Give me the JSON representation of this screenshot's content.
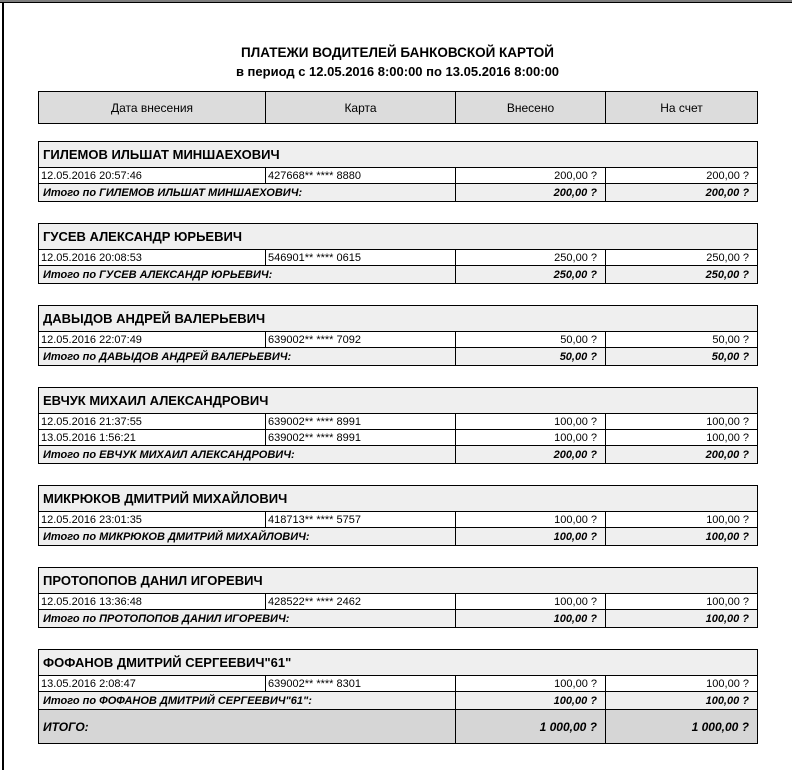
{
  "page": {
    "title_line1": "ПЛАТЕЖИ ВОДИТЕЛЕЙ БАНКОВСКОЙ КАРТОЙ",
    "title_line2": "в период с 12.05.2016 8:00:00 по 13.05.2016 8:00:00"
  },
  "colors": {
    "header_bg": "#dcdcdc",
    "group_bg": "#efefef",
    "grand_total_bg": "#d6d6d6",
    "border": "#000000"
  },
  "table": {
    "columns": [
      "Дата внесения",
      "Карта",
      "Внесено",
      "На счет"
    ],
    "groups": [
      {
        "driver": "ГИЛЕМОВ ИЛЬШАТ МИНШАЕХОВИЧ",
        "rows": [
          {
            "date": "12.05.2016 20:57:46",
            "card": "427668** **** 8880",
            "deposited": "200,00 ?",
            "to_account": "200,00 ?"
          }
        ],
        "subtotal_label": "Итого по ГИЛЕМОВ ИЛЬШАТ МИНШАЕХОВИЧ:",
        "subtotal_deposited": "200,00 ?",
        "subtotal_to_account": "200,00 ?"
      },
      {
        "driver": "ГУСЕВ АЛЕКСАНДР ЮРЬЕВИЧ",
        "rows": [
          {
            "date": "12.05.2016 20:08:53",
            "card": "546901** **** 0615",
            "deposited": "250,00 ?",
            "to_account": "250,00 ?"
          }
        ],
        "subtotal_label": "Итого по ГУСЕВ АЛЕКСАНДР ЮРЬЕВИЧ:",
        "subtotal_deposited": "250,00 ?",
        "subtotal_to_account": "250,00 ?"
      },
      {
        "driver": "ДАВЫДОВ АНДРЕЙ ВАЛЕРЬЕВИЧ",
        "rows": [
          {
            "date": "12.05.2016 22:07:49",
            "card": "639002** **** 7092",
            "deposited": "50,00 ?",
            "to_account": "50,00 ?"
          }
        ],
        "subtotal_label": "Итого по ДАВЫДОВ АНДРЕЙ ВАЛЕРЬЕВИЧ:",
        "subtotal_deposited": "50,00 ?",
        "subtotal_to_account": "50,00 ?"
      },
      {
        "driver": "ЕВЧУК МИХАИЛ АЛЕКСАНДРОВИЧ",
        "rows": [
          {
            "date": "12.05.2016 21:37:55",
            "card": "639002** **** 8991",
            "deposited": "100,00 ?",
            "to_account": "100,00 ?"
          },
          {
            "date": "13.05.2016 1:56:21",
            "card": "639002** **** 8991",
            "deposited": "100,00 ?",
            "to_account": "100,00 ?"
          }
        ],
        "subtotal_label": "Итого по ЕВЧУК МИХАИЛ АЛЕКСАНДРОВИЧ:",
        "subtotal_deposited": "200,00 ?",
        "subtotal_to_account": "200,00 ?"
      },
      {
        "driver": "МИКРЮКОВ ДМИТРИЙ МИХАЙЛОВИЧ",
        "rows": [
          {
            "date": "12.05.2016 23:01:35",
            "card": "418713** **** 5757",
            "deposited": "100,00 ?",
            "to_account": "100,00 ?"
          }
        ],
        "subtotal_label": "Итого по МИКРЮКОВ ДМИТРИЙ МИХАЙЛОВИЧ:",
        "subtotal_deposited": "100,00 ?",
        "subtotal_to_account": "100,00 ?"
      },
      {
        "driver": "ПРОТОПОПОВ ДАНИЛ ИГОРЕВИЧ",
        "rows": [
          {
            "date": "12.05.2016 13:36:48",
            "card": "428522** **** 2462",
            "deposited": "100,00 ?",
            "to_account": "100,00 ?"
          }
        ],
        "subtotal_label": "Итого по ПРОТОПОПОВ ДАНИЛ ИГОРЕВИЧ:",
        "subtotal_deposited": "100,00 ?",
        "subtotal_to_account": "100,00 ?"
      },
      {
        "driver": "ФОФАНОВ ДМИТРИЙ СЕРГЕЕВИЧ\"61\"",
        "rows": [
          {
            "date": "13.05.2016 2:08:47",
            "card": "639002** **** 8301",
            "deposited": "100,00 ?",
            "to_account": "100,00 ?"
          }
        ],
        "subtotal_label": "Итого по ФОФАНОВ ДМИТРИЙ СЕРГЕЕВИЧ\"61\":",
        "subtotal_deposited": "100,00 ?",
        "subtotal_to_account": "100,00 ?"
      }
    ],
    "grand_total": {
      "label": "ИТОГО:",
      "deposited": "1 000,00 ?",
      "to_account": "1 000,00 ?"
    }
  }
}
